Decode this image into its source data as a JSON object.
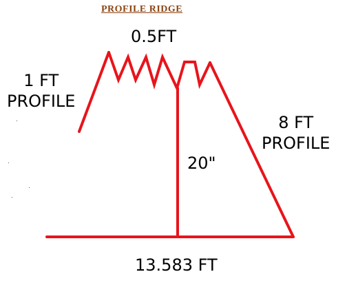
{
  "title": "PROFILE RIDGE",
  "labels": {
    "top": "0.5FT",
    "left_line1": "1 FT",
    "left_line2": "PROFILE",
    "right_line1": "8 FT",
    "right_line2": "PROFILE",
    "middle": "20\"",
    "bottom": "13.583 FT"
  },
  "colors": {
    "stroke": "#e8141b",
    "text": "#000000",
    "title": "#8b4513"
  }
}
